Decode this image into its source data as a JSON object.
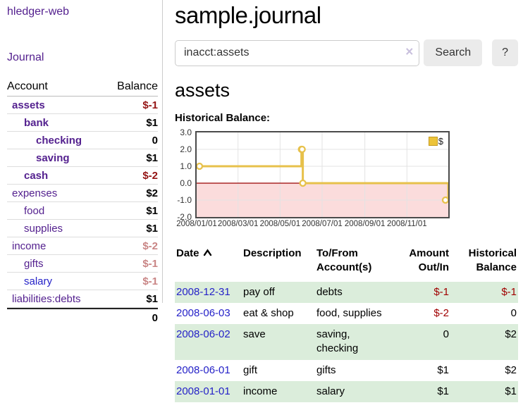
{
  "sidebar": {
    "app_title": "hledger-web",
    "journal_link": "Journal",
    "accounts_table": {
      "account_header": "Account",
      "balance_header": "Balance",
      "rows": [
        {
          "name": "assets",
          "depth": 1,
          "balance": "$-1",
          "bold": true,
          "balance_style": "neg-strong",
          "link_style": "purple"
        },
        {
          "name": "bank",
          "depth": 2,
          "balance": "$1",
          "bold": true,
          "balance_style": "",
          "link_style": "purple"
        },
        {
          "name": "checking",
          "depth": 3,
          "balance": "0",
          "bold": true,
          "balance_style": "",
          "link_style": "purple"
        },
        {
          "name": "saving",
          "depth": 3,
          "balance": "$1",
          "bold": true,
          "balance_style": "",
          "link_style": "purple"
        },
        {
          "name": "cash",
          "depth": 2,
          "balance": "$-2",
          "bold": true,
          "balance_style": "neg-strong",
          "link_style": "purple"
        },
        {
          "name": "expenses",
          "depth": 1,
          "balance": "$2",
          "bold": false,
          "balance_style": "",
          "link_style": "purple"
        },
        {
          "name": "food",
          "depth": 2,
          "balance": "$1",
          "bold": false,
          "balance_style": "",
          "link_style": "purple"
        },
        {
          "name": "supplies",
          "depth": 2,
          "balance": "$1",
          "bold": false,
          "balance_style": "",
          "link_style": "purple"
        },
        {
          "name": "income",
          "depth": 1,
          "balance": "$-2",
          "bold": false,
          "balance_style": "neg-faded",
          "link_style": "purple"
        },
        {
          "name": "gifts",
          "depth": 2,
          "balance": "$-1",
          "bold": false,
          "balance_style": "neg-faded",
          "link_style": "purple"
        },
        {
          "name": "salary",
          "depth": 2,
          "balance": "$-1",
          "bold": false,
          "balance_style": "neg-faded",
          "link_style": "blue"
        },
        {
          "name": "liabilities:debts",
          "depth": 1,
          "balance": "$1",
          "bold": false,
          "balance_style": "",
          "link_style": "purple"
        }
      ],
      "total": "0"
    }
  },
  "header": {
    "title": "sample.journal"
  },
  "search": {
    "query": "inacct:assets",
    "clear_icon": "×",
    "button_label": "Search",
    "help_label": "?"
  },
  "account_page": {
    "heading": "assets",
    "chart_label": "Historical Balance:"
  },
  "chart_data": {
    "type": "line",
    "style": "step",
    "title": "Historical Balance:",
    "series": [
      {
        "name": "$",
        "color": "#e7c14b",
        "points": [
          {
            "x": "2008-01-01",
            "y": 1
          },
          {
            "x": "2008-06-01",
            "y": 2
          },
          {
            "x": "2008-06-02",
            "y": 2
          },
          {
            "x": "2008-06-03",
            "y": 0
          },
          {
            "x": "2008-12-31",
            "y": -1
          }
        ]
      }
    ],
    "x_range": [
      "2008-01-01",
      "2008-12-31"
    ],
    "ylim": [
      -2,
      3
    ],
    "y_ticks": [
      "3.0",
      "2.0",
      "1.0",
      "0.0",
      "-1.0",
      "-2.0"
    ],
    "x_ticks": [
      {
        "date": "2008-01-01",
        "label": "2008/01/01"
      },
      {
        "date": "2008-03-01",
        "label": "2008/03/01"
      },
      {
        "date": "2008-05-01",
        "label": "2008/05/01"
      },
      {
        "date": "2008-07-01",
        "label": "2008/07/01"
      },
      {
        "date": "2008-09-01",
        "label": "2008/09/01"
      },
      {
        "date": "2008-11-01",
        "label": "2008/11/01"
      }
    ],
    "grid": true,
    "zero_line_color": "#990000",
    "negative_fill": "#fbdcdc",
    "gridline_color": "#e3e3e3",
    "legend": {
      "label": "$",
      "position": "top-right"
    }
  },
  "register_table": {
    "columns": [
      "Date",
      "Description",
      "To/From Account(s)",
      "Amount Out/In",
      "Historical Balance"
    ],
    "sort_column": "Date",
    "sort_direction": "asc",
    "rows": [
      {
        "date": "2008-12-31",
        "description": "pay off",
        "accounts": "debts",
        "amount": "$-1",
        "balance": "$-1"
      },
      {
        "date": "2008-06-03",
        "description": "eat & shop",
        "accounts": "food, supplies",
        "amount": "$-2",
        "balance": "0"
      },
      {
        "date": "2008-06-02",
        "description": "save",
        "accounts": "saving, checking",
        "amount": "0",
        "balance": "$2"
      },
      {
        "date": "2008-06-01",
        "description": "gift",
        "accounts": "gifts",
        "amount": "$1",
        "balance": "$2"
      },
      {
        "date": "2008-01-01",
        "description": "income",
        "accounts": "salary",
        "amount": "$1",
        "balance": "$1"
      }
    ]
  },
  "colors": {
    "link_purple": "#54218f",
    "link_blue": "#2522c8",
    "negative_strong": "#941414",
    "negative_faded": "#c98585",
    "table_stripe_green": "#dbeddb",
    "chart_gold": "#e7c14b"
  }
}
